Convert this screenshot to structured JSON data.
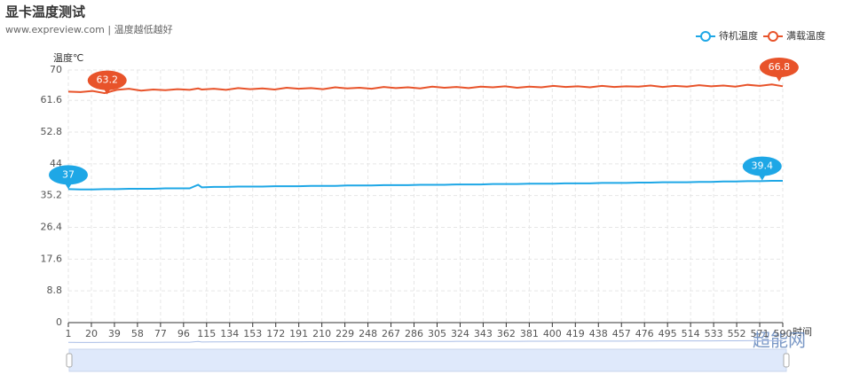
{
  "chart_data": {
    "type": "line",
    "title": "显卡温度测试",
    "subtitle": "www.expreview.com | 温度越低越好",
    "y_label": "温度℃",
    "x_label": "时间",
    "watermark": "超能网",
    "x": [
      1,
      11,
      21,
      31,
      41,
      51,
      61,
      71,
      81,
      91,
      101,
      108,
      111,
      121,
      131,
      141,
      151,
      161,
      171,
      181,
      191,
      201,
      211,
      221,
      231,
      241,
      251,
      261,
      271,
      281,
      291,
      301,
      311,
      321,
      331,
      341,
      351,
      361,
      371,
      381,
      391,
      401,
      411,
      421,
      431,
      441,
      451,
      461,
      471,
      481,
      491,
      501,
      511,
      521,
      531,
      541,
      551,
      561,
      571,
      581,
      590
    ],
    "xlim": [
      1,
      590
    ],
    "xticks": [
      1,
      20,
      39,
      58,
      77,
      96,
      115,
      134,
      153,
      172,
      191,
      210,
      229,
      248,
      267,
      286,
      305,
      324,
      343,
      362,
      381,
      400,
      419,
      438,
      457,
      476,
      495,
      514,
      533,
      552,
      571,
      590
    ],
    "ylim": [
      0,
      70
    ],
    "yticks": [
      0,
      8.8,
      17.6,
      26.4,
      35.2,
      44,
      52.8,
      61.6,
      70
    ],
    "grid": true,
    "legend": "top-right",
    "series": [
      {
        "name": "待机温度",
        "color": "#1ea7e6",
        "values": [
          37.0,
          36.9,
          36.9,
          37.0,
          37.0,
          37.1,
          37.1,
          37.1,
          37.2,
          37.2,
          37.2,
          38.2,
          37.5,
          37.6,
          37.6,
          37.7,
          37.7,
          37.7,
          37.8,
          37.8,
          37.8,
          37.9,
          37.9,
          37.9,
          38.0,
          38.0,
          38.0,
          38.1,
          38.1,
          38.1,
          38.2,
          38.2,
          38.2,
          38.3,
          38.3,
          38.3,
          38.4,
          38.4,
          38.4,
          38.5,
          38.5,
          38.5,
          38.6,
          38.6,
          38.6,
          38.7,
          38.7,
          38.7,
          38.8,
          38.8,
          38.9,
          38.9,
          38.9,
          39.0,
          39.0,
          39.1,
          39.1,
          39.2,
          39.2,
          39.3,
          39.3
        ],
        "mark_points": [
          {
            "x": 1,
            "value": 37
          },
          {
            "x": 573,
            "value": 39.4
          }
        ]
      },
      {
        "name": "满载温度",
        "color": "#e8532a",
        "values": [
          64.0,
          63.9,
          64.2,
          63.6,
          64.5,
          64.8,
          64.3,
          64.6,
          64.4,
          64.7,
          64.5,
          64.9,
          64.6,
          64.8,
          64.5,
          65.0,
          64.7,
          64.9,
          64.6,
          65.1,
          64.8,
          65.0,
          64.7,
          65.2,
          64.9,
          65.1,
          64.8,
          65.3,
          65.0,
          65.2,
          64.9,
          65.4,
          65.1,
          65.3,
          65.0,
          65.4,
          65.2,
          65.5,
          65.1,
          65.4,
          65.2,
          65.6,
          65.3,
          65.5,
          65.2,
          65.6,
          65.3,
          65.5,
          65.4,
          65.7,
          65.3,
          65.6,
          65.4,
          65.8,
          65.5,
          65.7,
          65.4,
          65.9,
          65.6,
          66.0,
          65.5
        ],
        "mark_points": [
          {
            "x": 33,
            "value": 63.2
          },
          {
            "x": 587,
            "value": 66.8
          }
        ]
      }
    ]
  }
}
